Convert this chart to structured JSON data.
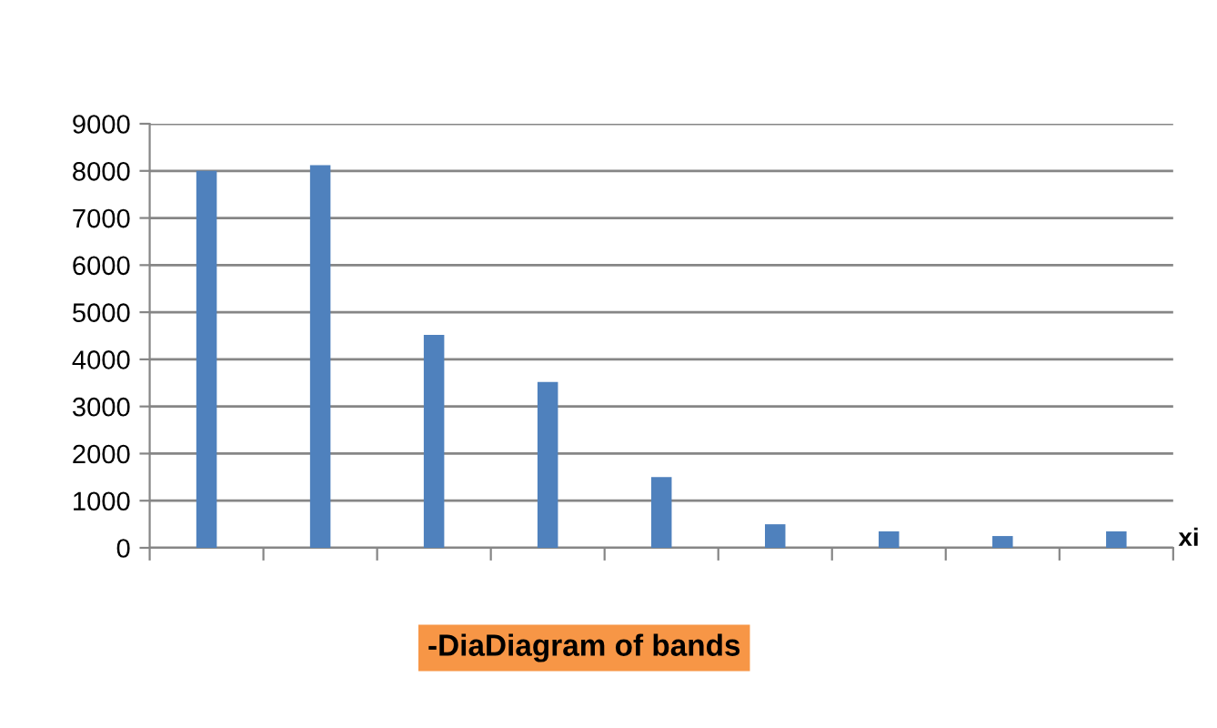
{
  "chart_data": {
    "type": "bar",
    "categories": [
      null,
      null,
      null,
      null,
      null,
      null,
      null,
      null,
      null
    ],
    "values": [
      8000,
      8120,
      4520,
      3520,
      1500,
      500,
      350,
      250,
      350
    ],
    "color": "#4f81bd",
    "xlabel": "xi",
    "ylim": [
      0,
      9000
    ],
    "yticks": [
      0,
      1000,
      2000,
      3000,
      4000,
      5000,
      6000,
      7000,
      8000,
      9000
    ],
    "grid": "y",
    "annotations": [
      "-DiaDiagram of bands"
    ]
  }
}
